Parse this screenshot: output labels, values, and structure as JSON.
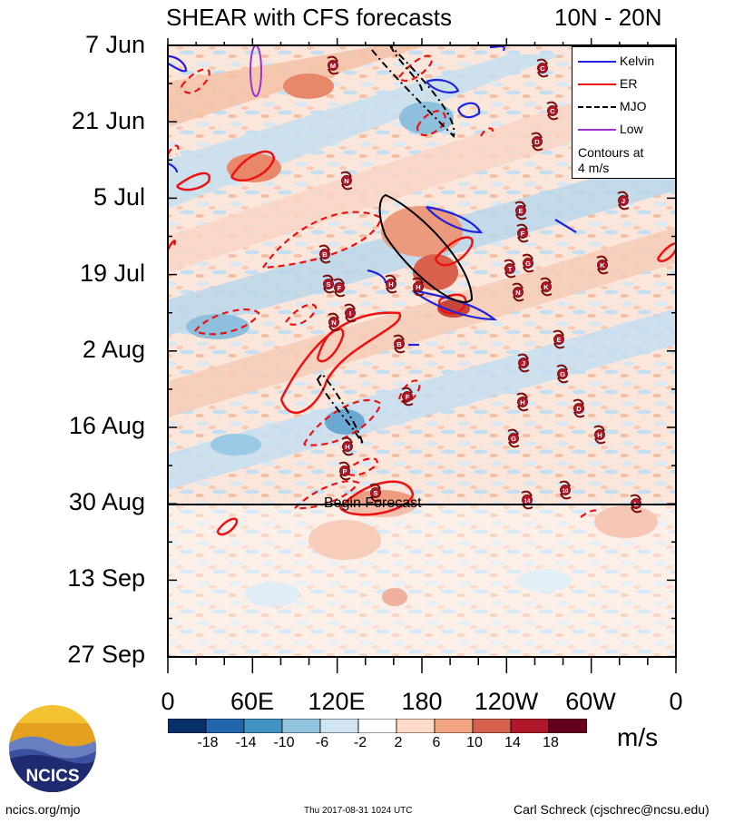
{
  "chart_data": {
    "type": "heatmap",
    "title": "SHEAR with CFS forecasts",
    "region": "10N - 20N",
    "y_axis": {
      "labels": [
        "7 Jun",
        "21 Jun",
        "5 Jul",
        "19 Jul",
        "2 Aug",
        "16 Aug",
        "30 Aug",
        "13 Sep",
        "27 Sep"
      ]
    },
    "x_axis": {
      "labels": [
        "0",
        "60E",
        "120E",
        "180",
        "120W",
        "60W",
        "0"
      ],
      "range_deg_east": [
        0,
        360
      ]
    },
    "colorbar": {
      "units": "m/s",
      "tick_labels": [
        "-18",
        "-14",
        "-10",
        "-6",
        "-2",
        "2",
        "6",
        "10",
        "14",
        "18"
      ],
      "colors": [
        "#08306b",
        "#2166ac",
        "#4393c3",
        "#92c5de",
        "#d1e5f0",
        "#ffffff",
        "#fddbc7",
        "#f4a582",
        "#d6604d",
        "#b2182b",
        "#67001f"
      ]
    },
    "legend": {
      "entries": [
        {
          "label": "Kelvin",
          "color": "#2222dd",
          "style": "solid"
        },
        {
          "label": "ER",
          "color": "#ee1111",
          "style": "solid"
        },
        {
          "label": "MJO",
          "color": "#000000",
          "style": "dash-dot"
        },
        {
          "label": "Low",
          "color": "#9933cc",
          "style": "solid"
        }
      ],
      "note_line1": "Contours at",
      "note_line2": "4 m/s"
    },
    "forecast_marker": {
      "label": "Begin Forecast",
      "date": "30 Aug"
    },
    "storm_symbols": [
      "M",
      "C",
      "C",
      "D",
      "N",
      "E",
      "F",
      "J",
      "G",
      "B",
      "T",
      "K",
      "S",
      "F",
      "K",
      "H",
      "H",
      "N",
      "N",
      "I",
      "B",
      "E",
      "J",
      "G",
      "H",
      "F",
      "D",
      "G",
      "H",
      "H",
      "P",
      "S",
      "14",
      "10",
      "L"
    ]
  },
  "footer": {
    "site": "ncics.org/mjo",
    "timestamp": "Thu 2017-08-31 1024 UTC",
    "author": "Carl Schreck (cjschrec@ncsu.edu)",
    "logo_text": "NCICS"
  }
}
